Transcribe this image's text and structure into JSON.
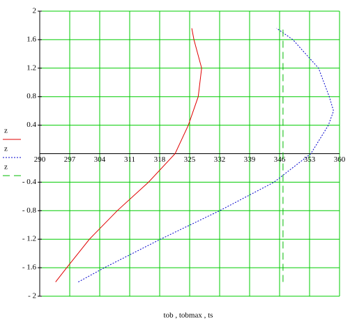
{
  "chart_data": {
    "type": "line",
    "x_label": "tob , tobmax , ts",
    "xlim": [
      290,
      360
    ],
    "xticks": [
      290,
      297,
      304,
      311,
      318,
      325,
      332,
      339,
      346,
      353,
      360
    ],
    "ylim": [
      -2,
      2
    ],
    "yticks": [
      2,
      1.6,
      1.2,
      0.8,
      0.4,
      {
        "value": -0.4,
        "label": "- 0.4"
      },
      {
        "value": -0.8,
        "label": "- 0.8"
      },
      {
        "value": -1.2,
        "label": "- 1.2"
      },
      {
        "value": -1.6,
        "label": "- 1.6"
      },
      {
        "value": -2,
        "label": "- 2"
      }
    ],
    "grid": true,
    "grid_color": "#00cc00",
    "series": [
      {
        "name": "z",
        "color": "#e00000",
        "dash": "none",
        "x": [
          293.7,
          296.3,
          301.6,
          308.1,
          315.4,
          321.6,
          324.7,
          327,
          327.8,
          326,
          325.5
        ],
        "y": [
          -1.8,
          -1.6,
          -1.2,
          -0.8,
          -0.4,
          0,
          0.4,
          0.8,
          1.2,
          1.6,
          1.76
        ]
      },
      {
        "name": "z",
        "color": "#0000cc",
        "dash": "2,2",
        "x": [
          299,
          305.1,
          318.2,
          332,
          344.7,
          353.3,
          357.4,
          358.6,
          357.6,
          355.1,
          349.1,
          345.3
        ],
        "y": [
          -1.8,
          -1.6,
          -1.2,
          -0.8,
          -0.4,
          0,
          0.4,
          0.6,
          0.8,
          1.2,
          1.6,
          1.76
        ]
      },
      {
        "name": "z",
        "color": "#00bb00",
        "dash": "10,6",
        "x": [
          346.8,
          346.8
        ],
        "y": [
          -1.8,
          1.76
        ]
      }
    ]
  }
}
